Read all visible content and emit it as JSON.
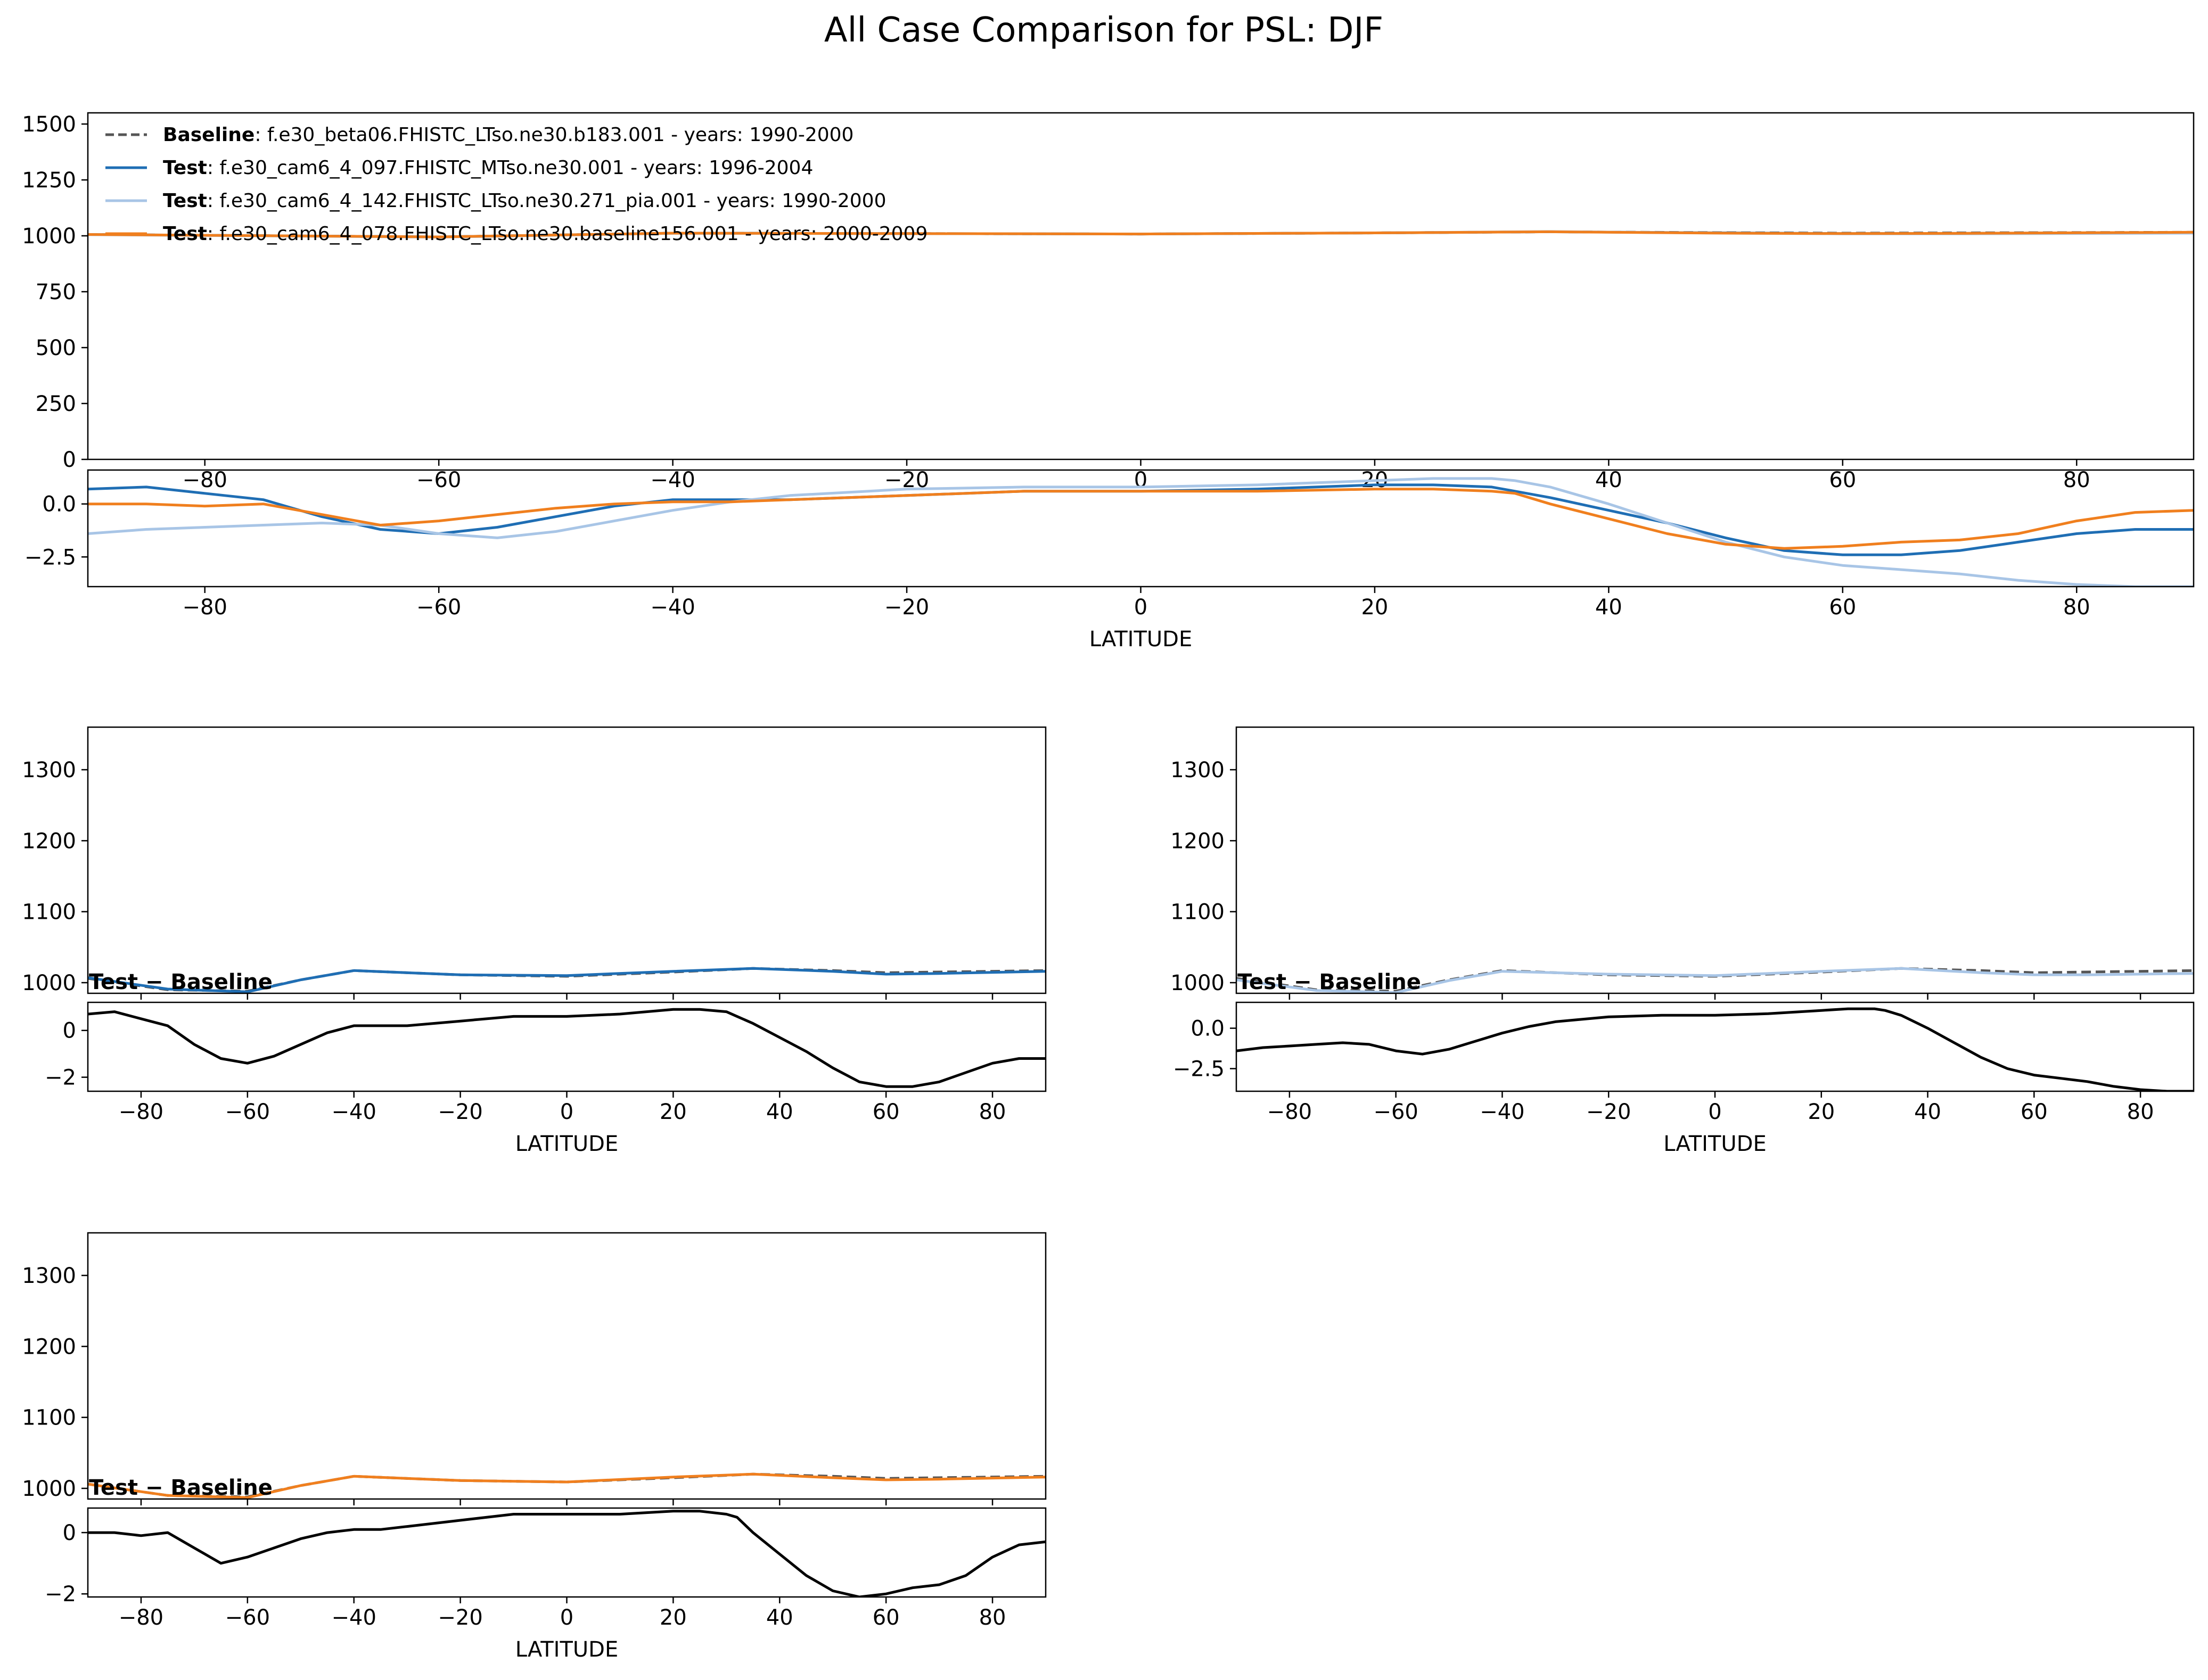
{
  "figure": {
    "title": "All Case Comparison for PSL: DJF"
  },
  "legend": {
    "entries": [
      {
        "tag": "Baseline",
        "label": ": f.e30_beta06.FHISTC_LTso.ne30.b183.001 - years: 1990-2000",
        "color": "#555555",
        "dash": true
      },
      {
        "tag": "Test",
        "label": ": f.e30_cam6_4_097.FHISTC_MTso.ne30.001 - years: 1996-2004",
        "color": "#1f6eb4",
        "dash": false
      },
      {
        "tag": "Test",
        "label": ": f.e30_cam6_4_142.FHISTC_LTso.ne30.271_pia.001 - years: 1990-2000",
        "color": "#a8c5e6",
        "dash": false
      },
      {
        "tag": "Test",
        "label": ": f.e30_cam6_4_078.FHISTC_LTso.ne30.baseline156.001 - years: 2000-2009",
        "color": "#f07f1e",
        "dash": false
      }
    ]
  },
  "chart_data": [
    {
      "type": "line",
      "panel": "all-cases-main",
      "xlim": [
        -90,
        90
      ],
      "ylim": [
        0,
        1550
      ],
      "yticks": [
        0,
        250,
        500,
        750,
        1000,
        1250,
        1500
      ],
      "xticks": [
        -80,
        -60,
        -40,
        -20,
        0,
        20,
        40,
        60,
        80
      ],
      "xlabel": "",
      "series": [
        {
          "legend_index": 0,
          "color": "#555555",
          "dash": true,
          "x": [
            -90,
            -60,
            -40,
            -20,
            0,
            20,
            35,
            50,
            60,
            70,
            90
          ],
          "y": [
            1006,
            995,
            1012,
            1010,
            1008,
            1013,
            1018,
            1014,
            1012,
            1013,
            1016
          ]
        },
        {
          "legend_index": 1,
          "color": "#1f6eb4",
          "dash": false,
          "x": [
            -90,
            -60,
            -40,
            -20,
            0,
            20,
            35,
            50,
            60,
            70,
            90
          ],
          "y": [
            1006,
            995,
            1012,
            1010,
            1008,
            1013,
            1018,
            1013,
            1010,
            1011,
            1015
          ]
        },
        {
          "legend_index": 2,
          "color": "#a8c5e6",
          "dash": false,
          "x": [
            -90,
            -60,
            -40,
            -20,
            0,
            20,
            35,
            50,
            60,
            70,
            90
          ],
          "y": [
            1005,
            994,
            1011,
            1010,
            1008,
            1013,
            1019,
            1012,
            1009,
            1009,
            1012
          ]
        },
        {
          "legend_index": 3,
          "color": "#f07f1e",
          "dash": false,
          "x": [
            -90,
            -60,
            -40,
            -20,
            0,
            20,
            35,
            50,
            60,
            70,
            90
          ],
          "y": [
            1006,
            995,
            1012,
            1010,
            1008,
            1013,
            1018,
            1012,
            1010,
            1011,
            1016
          ]
        }
      ]
    },
    {
      "type": "line",
      "panel": "all-cases-diff",
      "xlim": [
        -90,
        90
      ],
      "ylim": [
        -3.9,
        1.6
      ],
      "yticks": [
        -2.5,
        0.0
      ],
      "ytick_labels": [
        "−2.5",
        "0.0"
      ],
      "xticks": [
        -80,
        -60,
        -40,
        -20,
        0,
        20,
        40,
        60,
        80
      ],
      "xlabel": "LATITUDE",
      "series": [
        {
          "legend_index": 1,
          "color": "#1f6eb4",
          "x": [
            -90,
            -85,
            -80,
            -75,
            -70,
            -65,
            -60,
            -55,
            -50,
            -45,
            -40,
            -35,
            -30,
            -20,
            -10,
            0,
            10,
            20,
            25,
            30,
            32,
            35,
            40,
            45,
            50,
            55,
            60,
            65,
            70,
            75,
            80,
            85,
            90
          ],
          "y": [
            0.7,
            0.8,
            0.5,
            0.2,
            -0.6,
            -1.2,
            -1.4,
            -1.1,
            -0.6,
            -0.1,
            0.2,
            0.2,
            0.2,
            0.4,
            0.6,
            0.6,
            0.7,
            0.9,
            0.9,
            0.8,
            0.6,
            0.3,
            -0.3,
            -0.9,
            -1.6,
            -2.2,
            -2.4,
            -2.4,
            -2.2,
            -1.8,
            -1.4,
            -1.2,
            -1.2
          ]
        },
        {
          "legend_index": 2,
          "color": "#a8c5e6",
          "x": [
            -90,
            -85,
            -80,
            -75,
            -70,
            -65,
            -60,
            -55,
            -50,
            -45,
            -40,
            -35,
            -30,
            -20,
            -10,
            0,
            10,
            20,
            25,
            30,
            32,
            35,
            40,
            45,
            50,
            55,
            60,
            65,
            70,
            75,
            80,
            85,
            90
          ],
          "y": [
            -1.4,
            -1.2,
            -1.1,
            -1.0,
            -0.9,
            -1.0,
            -1.4,
            -1.6,
            -1.3,
            -0.8,
            -0.3,
            0.1,
            0.4,
            0.7,
            0.8,
            0.8,
            0.9,
            1.1,
            1.2,
            1.2,
            1.1,
            0.8,
            0.0,
            -0.9,
            -1.8,
            -2.5,
            -2.9,
            -3.1,
            -3.3,
            -3.6,
            -3.8,
            -3.9,
            -3.9
          ]
        },
        {
          "legend_index": 3,
          "color": "#f07f1e",
          "x": [
            -90,
            -85,
            -80,
            -75,
            -70,
            -65,
            -60,
            -55,
            -50,
            -45,
            -40,
            -35,
            -30,
            -20,
            -10,
            0,
            10,
            20,
            25,
            30,
            32,
            35,
            40,
            45,
            50,
            55,
            60,
            65,
            70,
            75,
            80,
            85,
            90
          ],
          "y": [
            0.0,
            0.0,
            -0.1,
            0.0,
            -0.5,
            -1.0,
            -0.8,
            -0.5,
            -0.2,
            0.0,
            0.1,
            0.1,
            0.2,
            0.4,
            0.6,
            0.6,
            0.6,
            0.7,
            0.7,
            0.6,
            0.5,
            0.0,
            -0.7,
            -1.4,
            -1.9,
            -2.1,
            -2.0,
            -1.8,
            -1.7,
            -1.4,
            -0.8,
            -0.4,
            -0.3
          ]
        }
      ]
    },
    {
      "type": "line",
      "panel": "case1-main",
      "annotation": "Test − Baseline",
      "xlim": [
        -90,
        90
      ],
      "ylim": [
        985,
        1360
      ],
      "yticks": [
        1000,
        1100,
        1200,
        1300
      ],
      "xticks": [
        -80,
        -60,
        -40,
        -20,
        0,
        20,
        40,
        60,
        80
      ],
      "series": [
        {
          "legend_index": 0,
          "color": "#555555",
          "dash": true,
          "x": [
            -90,
            -75,
            -60,
            -50,
            -40,
            -20,
            0,
            20,
            35,
            50,
            60,
            70,
            90
          ],
          "y": [
            1006,
            990,
            988,
            1004,
            1017,
            1011,
            1009,
            1015,
            1020,
            1017,
            1014,
            1015,
            1017
          ]
        },
        {
          "legend_index": 1,
          "color": "#1f6eb4",
          "dash": false,
          "x": [
            -90,
            -75,
            -60,
            -50,
            -40,
            -20,
            0,
            20,
            35,
            50,
            60,
            70,
            90
          ],
          "y": [
            1007,
            991,
            987,
            1004,
            1017,
            1011,
            1010,
            1016,
            1020,
            1016,
            1012,
            1013,
            1016
          ]
        }
      ]
    },
    {
      "type": "line",
      "panel": "case1-diff",
      "xlim": [
        -90,
        90
      ],
      "ylim": [
        -2.6,
        1.2
      ],
      "yticks": [
        -2,
        0
      ],
      "ytick_labels": [
        "−2",
        "0"
      ],
      "xticks": [
        -80,
        -60,
        -40,
        -20,
        0,
        20,
        40,
        60,
        80
      ],
      "xlabel": "LATITUDE",
      "series": [
        {
          "color": "#000000",
          "x": [
            -90,
            -85,
            -80,
            -75,
            -70,
            -65,
            -60,
            -55,
            -50,
            -45,
            -40,
            -35,
            -30,
            -20,
            -10,
            0,
            10,
            20,
            25,
            30,
            32,
            35,
            40,
            45,
            50,
            55,
            60,
            65,
            70,
            75,
            80,
            85,
            90
          ],
          "y": [
            0.7,
            0.8,
            0.5,
            0.2,
            -0.6,
            -1.2,
            -1.4,
            -1.1,
            -0.6,
            -0.1,
            0.2,
            0.2,
            0.2,
            0.4,
            0.6,
            0.6,
            0.7,
            0.9,
            0.9,
            0.8,
            0.6,
            0.3,
            -0.3,
            -0.9,
            -1.6,
            -2.2,
            -2.4,
            -2.4,
            -2.2,
            -1.8,
            -1.4,
            -1.2,
            -1.2
          ]
        }
      ]
    },
    {
      "type": "line",
      "panel": "case2-main",
      "annotation": "Test − Baseline",
      "xlim": [
        -90,
        90
      ],
      "ylim": [
        985,
        1360
      ],
      "yticks": [
        1000,
        1100,
        1200,
        1300
      ],
      "xticks": [
        -80,
        -60,
        -40,
        -20,
        0,
        20,
        40,
        60,
        80
      ],
      "series": [
        {
          "legend_index": 0,
          "color": "#555555",
          "dash": true,
          "x": [
            -90,
            -75,
            -60,
            -50,
            -40,
            -20,
            0,
            20,
            35,
            50,
            60,
            70,
            90
          ],
          "y": [
            1006,
            990,
            988,
            1004,
            1017,
            1011,
            1009,
            1015,
            1020,
            1017,
            1014,
            1015,
            1017
          ]
        },
        {
          "legend_index": 2,
          "color": "#a8c5e6",
          "dash": false,
          "x": [
            -90,
            -75,
            -60,
            -50,
            -40,
            -20,
            0,
            20,
            35,
            50,
            60,
            70,
            90
          ],
          "y": [
            1004,
            989,
            986,
            1003,
            1016,
            1012,
            1010,
            1016,
            1020,
            1014,
            1011,
            1011,
            1013
          ]
        }
      ]
    },
    {
      "type": "line",
      "panel": "case2-diff",
      "xlim": [
        -90,
        90
      ],
      "ylim": [
        -3.9,
        1.6
      ],
      "yticks": [
        -2.5,
        0.0
      ],
      "ytick_labels": [
        "−2.5",
        "0.0"
      ],
      "xticks": [
        -80,
        -60,
        -40,
        -20,
        0,
        20,
        40,
        60,
        80
      ],
      "xlabel": "LATITUDE",
      "series": [
        {
          "color": "#000000",
          "x": [
            -90,
            -85,
            -80,
            -75,
            -70,
            -65,
            -60,
            -55,
            -50,
            -45,
            -40,
            -35,
            -30,
            -20,
            -10,
            0,
            10,
            20,
            25,
            30,
            32,
            35,
            40,
            45,
            50,
            55,
            60,
            65,
            70,
            75,
            80,
            85,
            90
          ],
          "y": [
            -1.4,
            -1.2,
            -1.1,
            -1.0,
            -0.9,
            -1.0,
            -1.4,
            -1.6,
            -1.3,
            -0.8,
            -0.3,
            0.1,
            0.4,
            0.7,
            0.8,
            0.8,
            0.9,
            1.1,
            1.2,
            1.2,
            1.1,
            0.8,
            0.0,
            -0.9,
            -1.8,
            -2.5,
            -2.9,
            -3.1,
            -3.3,
            -3.6,
            -3.8,
            -3.9,
            -3.9
          ]
        }
      ]
    },
    {
      "type": "line",
      "panel": "case3-main",
      "annotation": "Test − Baseline",
      "xlim": [
        -90,
        90
      ],
      "ylim": [
        985,
        1360
      ],
      "yticks": [
        1000,
        1100,
        1200,
        1300
      ],
      "xticks": [
        -80,
        -60,
        -40,
        -20,
        0,
        20,
        40,
        60,
        80
      ],
      "series": [
        {
          "legend_index": 0,
          "color": "#555555",
          "dash": true,
          "x": [
            -90,
            -75,
            -60,
            -50,
            -40,
            -20,
            0,
            20,
            35,
            50,
            60,
            70,
            90
          ],
          "y": [
            1006,
            990,
            988,
            1004,
            1017,
            1011,
            1009,
            1015,
            1020,
            1017,
            1014,
            1015,
            1017
          ]
        },
        {
          "legend_index": 3,
          "color": "#f07f1e",
          "dash": false,
          "x": [
            -90,
            -75,
            -60,
            -50,
            -40,
            -20,
            0,
            20,
            35,
            50,
            60,
            70,
            90
          ],
          "y": [
            1006,
            990,
            987,
            1004,
            1017,
            1011,
            1009,
            1016,
            1020,
            1015,
            1012,
            1013,
            1016
          ]
        }
      ]
    },
    {
      "type": "line",
      "panel": "case3-diff",
      "xlim": [
        -90,
        90
      ],
      "ylim": [
        -2.1,
        0.8
      ],
      "yticks": [
        -2,
        0
      ],
      "ytick_labels": [
        "−2",
        "0"
      ],
      "xticks": [
        -80,
        -60,
        -40,
        -20,
        0,
        20,
        40,
        60,
        80
      ],
      "xlabel": "LATITUDE",
      "series": [
        {
          "color": "#000000",
          "x": [
            -90,
            -85,
            -80,
            -75,
            -70,
            -65,
            -60,
            -55,
            -50,
            -45,
            -40,
            -35,
            -30,
            -20,
            -10,
            0,
            10,
            20,
            25,
            30,
            32,
            35,
            40,
            45,
            50,
            55,
            60,
            65,
            70,
            75,
            80,
            85,
            90
          ],
          "y": [
            0.0,
            0.0,
            -0.1,
            0.0,
            -0.5,
            -1.0,
            -0.8,
            -0.5,
            -0.2,
            0.0,
            0.1,
            0.1,
            0.2,
            0.4,
            0.6,
            0.6,
            0.6,
            0.7,
            0.7,
            0.6,
            0.5,
            0.0,
            -0.7,
            -1.4,
            -1.9,
            -2.1,
            -2.0,
            -1.8,
            -1.7,
            -1.4,
            -0.8,
            -0.4,
            -0.3
          ]
        }
      ]
    }
  ]
}
